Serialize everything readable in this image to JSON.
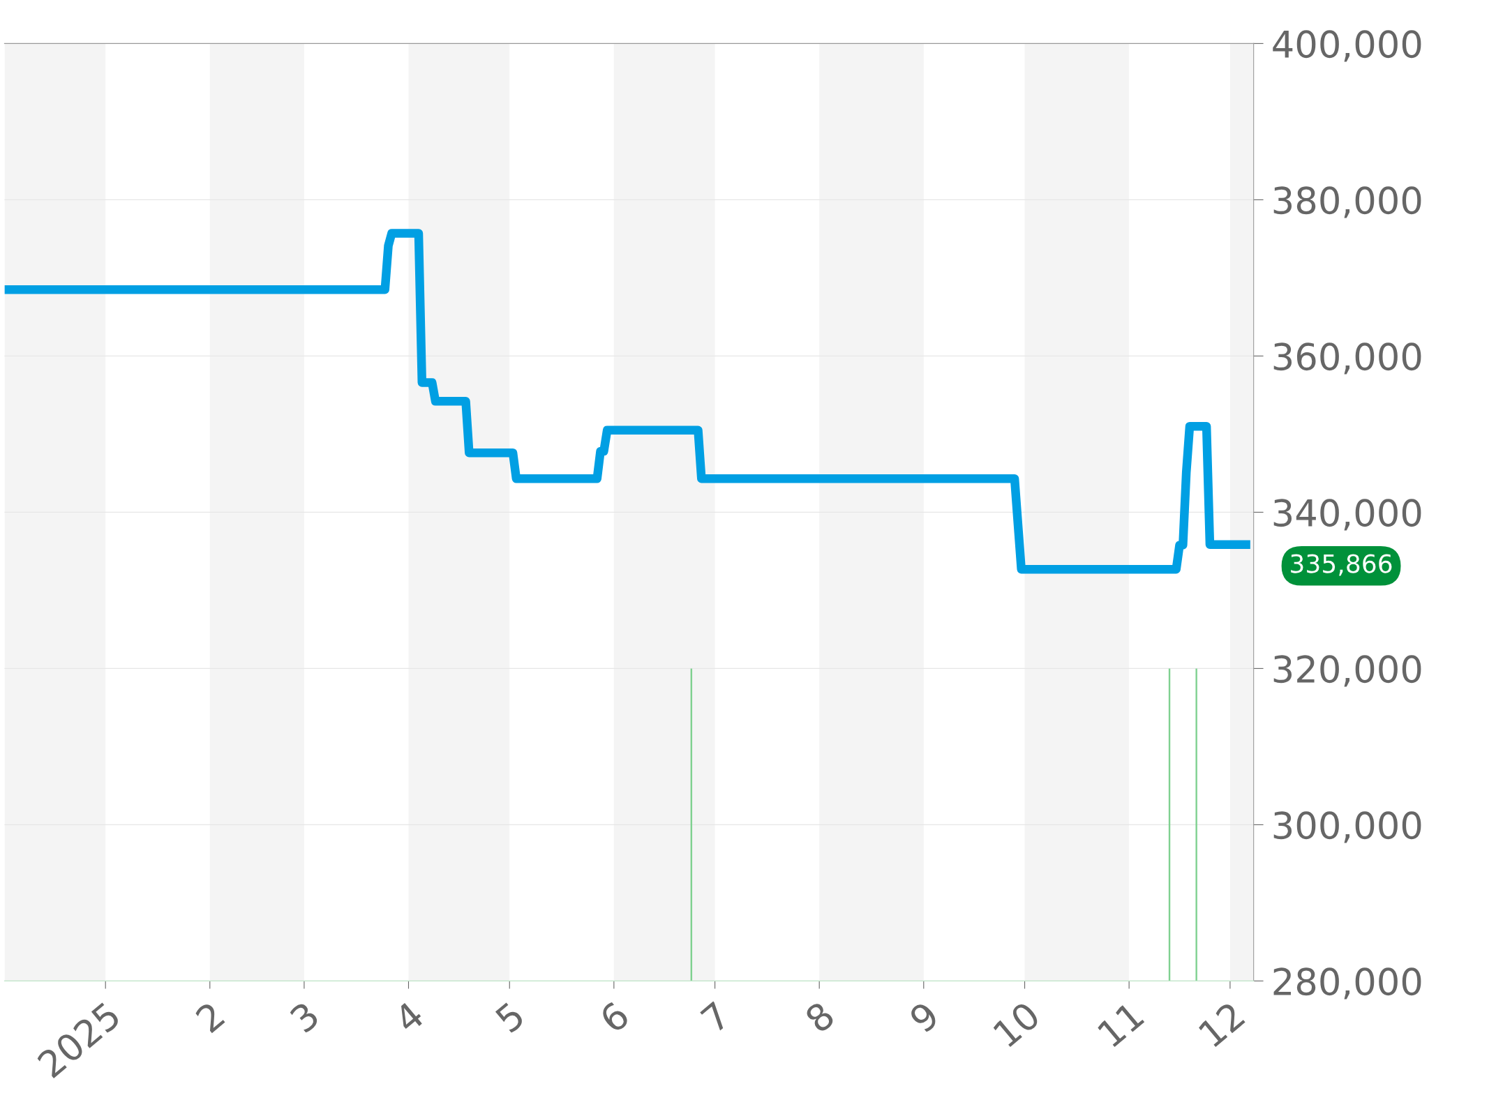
{
  "chart_data": {
    "type": "line",
    "xlim": [
      "2024-12-02",
      "2025-12-08"
    ],
    "xticks": [
      {
        "value": "2025-01-01",
        "label": "2025"
      },
      {
        "value": "2025-02-01",
        "label": "2"
      },
      {
        "value": "2025-03-01",
        "label": "3"
      },
      {
        "value": "2025-04-01",
        "label": "4"
      },
      {
        "value": "2025-05-01",
        "label": "5"
      },
      {
        "value": "2025-06-01",
        "label": "6"
      },
      {
        "value": "2025-07-01",
        "label": "7"
      },
      {
        "value": "2025-08-01",
        "label": "8"
      },
      {
        "value": "2025-09-01",
        "label": "9"
      },
      {
        "value": "2025-10-01",
        "label": "10"
      },
      {
        "value": "2025-11-01",
        "label": "11"
      },
      {
        "value": "2025-12-01",
        "label": "12"
      }
    ],
    "ylim": [
      280000,
      400000
    ],
    "yticks": [
      {
        "value": 280000,
        "label": "280,000"
      },
      {
        "value": 300000,
        "label": "300,000"
      },
      {
        "value": 320000,
        "label": "320,000"
      },
      {
        "value": 340000,
        "label": "340,000"
      },
      {
        "value": 360000,
        "label": "360,000"
      },
      {
        "value": 380000,
        "label": "380,000"
      },
      {
        "value": 400000,
        "label": "400,000"
      }
    ],
    "grid": "y",
    "legend": false,
    "marker": "none",
    "line_style": "solid",
    "series": [
      {
        "color": "#009fe3",
        "x": [
          "2024-12-02",
          "2025-03-25",
          "2025-03-26",
          "2025-03-27",
          "2025-04-04",
          "2025-04-05",
          "2025-04-08",
          "2025-04-09",
          "2025-04-18",
          "2025-04-19",
          "2025-05-02",
          "2025-05-03",
          "2025-05-27",
          "2025-05-28",
          "2025-05-29",
          "2025-05-30",
          "2025-06-26",
          "2025-06-27",
          "2025-09-28",
          "2025-09-30",
          "2025-11-15",
          "2025-11-16",
          "2025-11-17",
          "2025-11-18",
          "2025-11-19",
          "2025-11-24",
          "2025-11-25",
          "2025-12-07"
        ],
        "values": [
          368500,
          368500,
          374100,
          375700,
          375700,
          356600,
          356600,
          354200,
          354200,
          347600,
          347600,
          344300,
          344300,
          347800,
          347800,
          350500,
          350500,
          344300,
          344300,
          332700,
          332700,
          335800,
          335800,
          345100,
          351000,
          351000,
          335866,
          335866
        ]
      },
      {
        "type": "bar",
        "color": "#7fd190",
        "x": [
          "2025-06-24",
          "2025-11-13",
          "2025-11-21"
        ],
        "values": [
          320000,
          320000,
          320000
        ]
      }
    ],
    "bands": [
      {
        "axis": "x",
        "from": "2024-12-02",
        "to": "2025-01-01",
        "color": "#f4f4f4"
      },
      {
        "axis": "x",
        "from": "2025-02-01",
        "to": "2025-03-01",
        "color": "#f4f4f4"
      },
      {
        "axis": "x",
        "from": "2025-04-01",
        "to": "2025-05-01",
        "color": "#f4f4f4"
      },
      {
        "axis": "x",
        "from": "2025-06-01",
        "to": "2025-07-01",
        "color": "#f4f4f4"
      },
      {
        "axis": "x",
        "from": "2025-08-01",
        "to": "2025-09-01",
        "color": "#f4f4f4"
      },
      {
        "axis": "x",
        "from": "2025-10-01",
        "to": "2025-11-01",
        "color": "#f4f4f4"
      },
      {
        "axis": "x",
        "from": "2025-12-01",
        "to": "2025-12-08",
        "color": "#f4f4f4"
      }
    ],
    "annotations": [
      {
        "text": "335,866",
        "x": "2025-12-07",
        "y": 335866
      }
    ]
  }
}
